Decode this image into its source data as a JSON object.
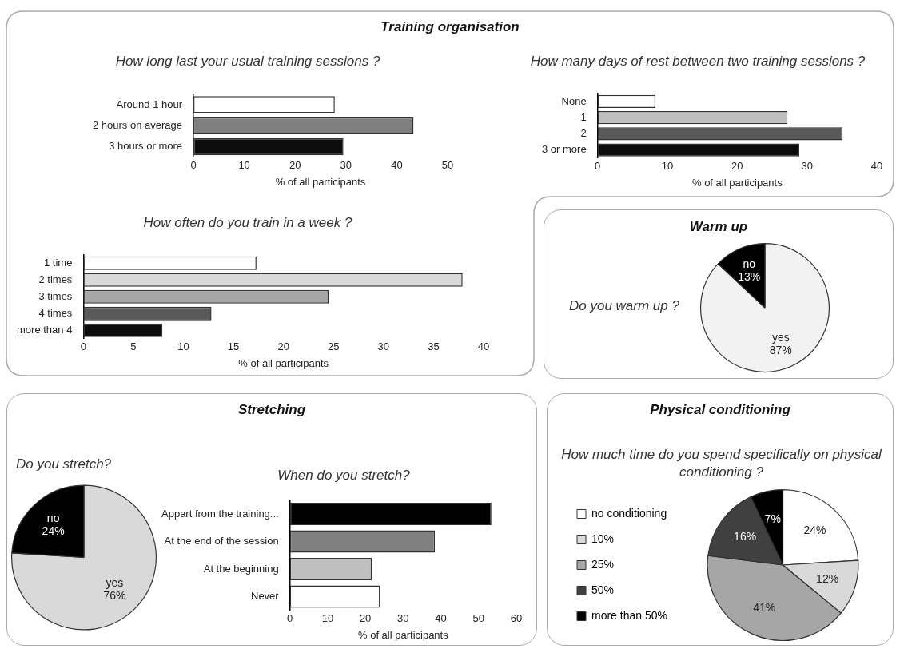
{
  "chart_data": [
    {
      "type": "bar",
      "orientation": "horizontal",
      "title": "How long last your usual training sessions ?",
      "annotations": [
        "Training organisation"
      ],
      "categories": [
        "Around 1 hour",
        "2 hours on average",
        "3 hours or more"
      ],
      "values": [
        27.8,
        43.3,
        29.5
      ],
      "colors": [
        "#ffffff",
        "#808080",
        "#0d0d0d"
      ],
      "xlim": [
        0,
        50
      ],
      "xticks": [
        0,
        10,
        20,
        30,
        40,
        50
      ],
      "xlabel": "% of all participants"
    },
    {
      "type": "bar",
      "orientation": "horizontal",
      "title": "How many days of rest between two training sessions ?",
      "categories": [
        "None",
        "1",
        "2",
        "3 or more"
      ],
      "values": [
        8.3,
        27.2,
        35.1,
        28.9
      ],
      "colors": [
        "#ffffff",
        "#bfbfbf",
        "#595959",
        "#0d0d0d"
      ],
      "xlim": [
        0,
        40
      ],
      "xticks": [
        0,
        10,
        20,
        30,
        40
      ],
      "xlabel": "% of all participants"
    },
    {
      "type": "bar",
      "orientation": "horizontal",
      "title": "How often do you train in a week ?",
      "categories": [
        "1 time",
        "2 times",
        "3 times",
        "4 times",
        "more than 4"
      ],
      "values": [
        17.3,
        37.9,
        24.5,
        12.8,
        7.9
      ],
      "colors": [
        "#ffffff",
        "#d9d9d9",
        "#a6a6a6",
        "#595959",
        "#0d0d0d"
      ],
      "xlim": [
        0,
        40
      ],
      "xticks": [
        0,
        5,
        10,
        15,
        20,
        25,
        30,
        35,
        40
      ],
      "xlabel": "% of all participants"
    },
    {
      "type": "pie",
      "title": "Do you warm up ?",
      "annotations": [
        "Warm up"
      ],
      "categories": [
        "yes",
        "no"
      ],
      "values": [
        87,
        13
      ],
      "value_labels": [
        "87%",
        "13%"
      ],
      "colors": [
        "#f2f2f2",
        "#000000"
      ]
    },
    {
      "type": "pie",
      "title": "Do you stretch?",
      "annotations": [
        "Stretching"
      ],
      "categories": [
        "yes",
        "no"
      ],
      "values": [
        76,
        24
      ],
      "value_labels": [
        "76%",
        "24%"
      ],
      "colors": [
        "#d9d9d9",
        "#000000"
      ]
    },
    {
      "type": "bar",
      "orientation": "horizontal",
      "title": "When do you stretch?",
      "categories": [
        "Appart from the training...",
        "At the end of the session",
        "At the beginning",
        "Never"
      ],
      "values": [
        53.4,
        38.4,
        21.7,
        23.9
      ],
      "colors": [
        "#000000",
        "#808080",
        "#bfbfbf",
        "#ffffff"
      ],
      "xlim": [
        0,
        60
      ],
      "xticks": [
        0,
        10,
        20,
        30,
        40,
        50,
        60
      ],
      "xlabel": "% of all participants"
    },
    {
      "type": "pie",
      "title": "How much time do you spend specifically on physical conditioning ?",
      "annotations": [
        "Physical conditioning"
      ],
      "categories": [
        "no conditioning",
        "10%",
        "25%",
        "50%",
        "more than 50%"
      ],
      "values": [
        24,
        12,
        41,
        16,
        7
      ],
      "value_labels": [
        "24%",
        "12%",
        "41%",
        "16%",
        "7%"
      ],
      "colors": [
        "#ffffff",
        "#d9d9d9",
        "#a6a6a6",
        "#404040",
        "#000000"
      ],
      "legend": "left"
    }
  ]
}
